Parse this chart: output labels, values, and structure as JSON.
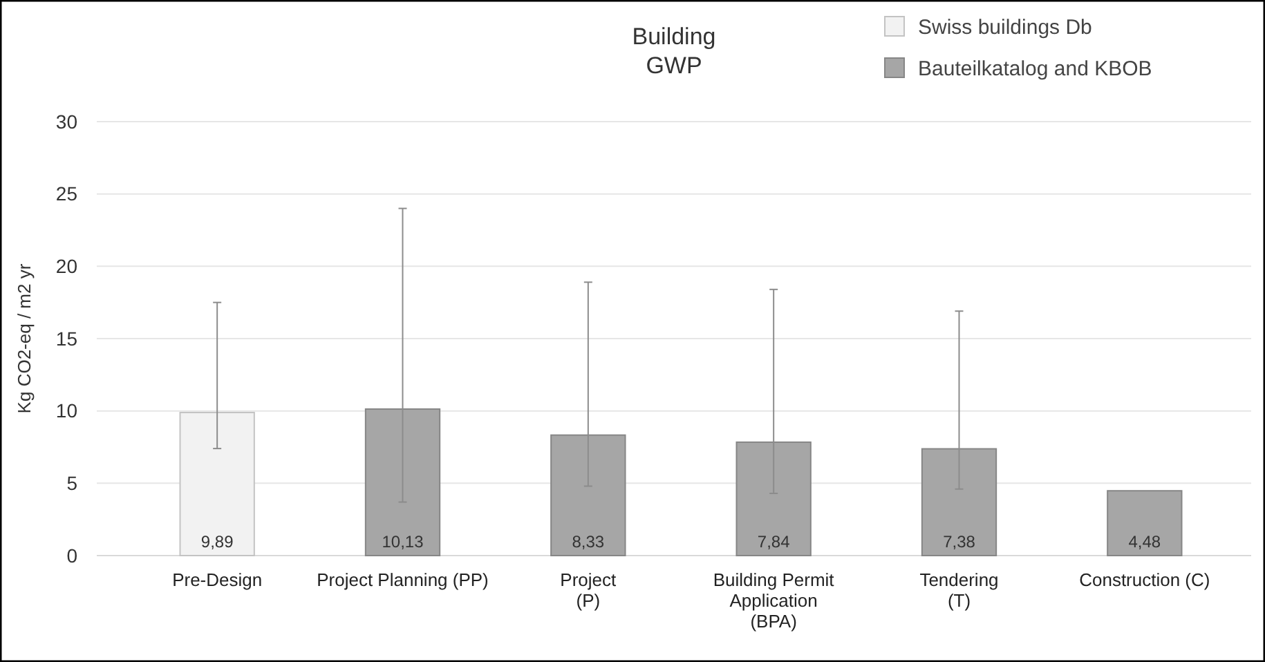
{
  "chart_data": {
    "type": "bar",
    "title": "Building\nGWP",
    "ylabel": "Kg CO2-eq / m2 yr",
    "categories": [
      "Pre-Design",
      "Project Planning (PP)",
      "Project\n(P)",
      "Building Permit\nApplication\n(BPA)",
      "Tendering\n(T)",
      "Construction (C)"
    ],
    "stacked": true,
    "series": [
      {
        "name": "Swiss buildings Db",
        "color": "#f2f2f2",
        "values": [
          9.89,
          null,
          null,
          null,
          null,
          null
        ],
        "errors": [
          [
            7.4,
            17.5
          ],
          null,
          null,
          null,
          null,
          null
        ],
        "value_labels": [
          "9,89",
          null,
          null,
          null,
          null,
          null
        ]
      },
      {
        "name": "Bauteilkatalog and KBOB",
        "color": "#a6a6a6",
        "values": [
          null,
          10.13,
          8.33,
          7.84,
          7.38,
          4.48
        ],
        "errors": [
          null,
          [
            3.7,
            24.0
          ],
          [
            4.8,
            18.9
          ],
          [
            4.3,
            18.4
          ],
          [
            4.6,
            16.9
          ],
          null
        ],
        "value_labels": [
          null,
          "10,13",
          "8,33",
          "7,84",
          "7,38",
          "4,48"
        ]
      }
    ],
    "ylim": [
      0,
      30
    ],
    "yticks": [
      0,
      5,
      10,
      15,
      20,
      25,
      30
    ],
    "grid": "y",
    "legend": "top right"
  }
}
